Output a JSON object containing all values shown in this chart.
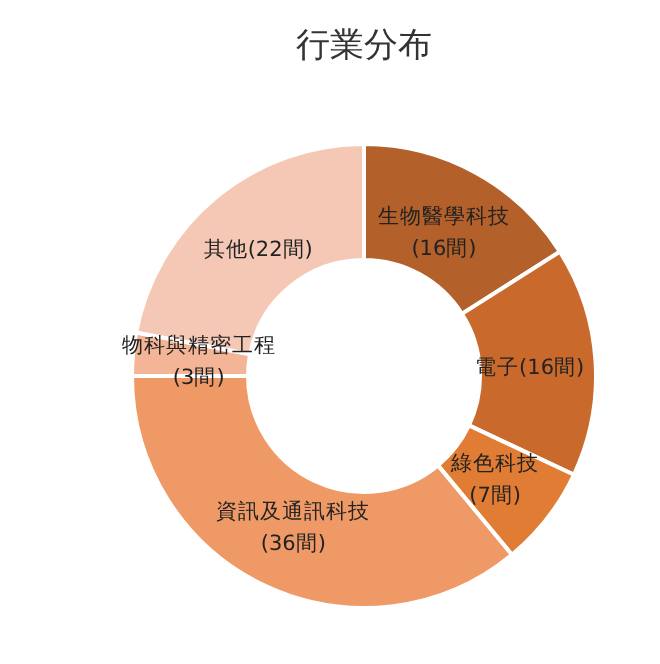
{
  "chart_data": {
    "type": "donut",
    "title": "行業分布",
    "categories": [
      "生物醫學科技",
      "電子",
      "綠色科技",
      "資訊及通訊科技",
      "物科與精密工程",
      "其他"
    ],
    "values": [
      16,
      16,
      7,
      36,
      3,
      22
    ],
    "value_labels": [
      "(16間)",
      "(16間)",
      "(7間)",
      "(36間)",
      "(3間)",
      "(22間)"
    ],
    "colors": [
      "#b3602a",
      "#c96a2c",
      "#e07c33",
      "#ef9a66",
      "#f3b595",
      "#f5c8b6"
    ]
  }
}
